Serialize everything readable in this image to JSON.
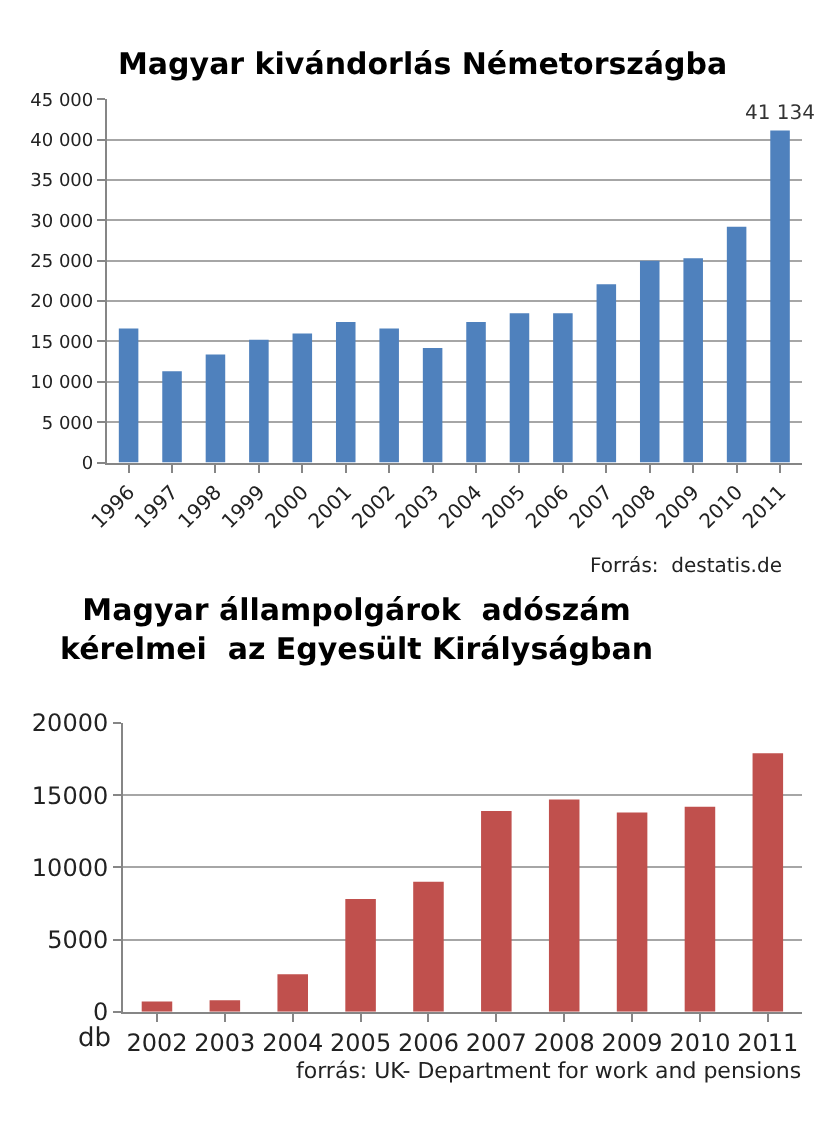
{
  "chart_data": [
    {
      "type": "bar",
      "title": "Magyar kivándorlás Németországba",
      "categories": [
        "1996",
        "1997",
        "1998",
        "1999",
        "2000",
        "2001",
        "2002",
        "2003",
        "2004",
        "2005",
        "2006",
        "2007",
        "2008",
        "2009",
        "2010",
        "2011"
      ],
      "values": [
        16600,
        11300,
        13400,
        15200,
        16000,
        17400,
        16600,
        14200,
        17400,
        18500,
        18500,
        22100,
        25000,
        25300,
        29200,
        41134
      ],
      "value_labels": [
        null,
        null,
        null,
        null,
        null,
        null,
        null,
        null,
        null,
        null,
        null,
        null,
        null,
        null,
        null,
        "41 134"
      ],
      "color": "#4f81bd",
      "ylim": [
        0,
        45000
      ],
      "yticks": [
        0,
        {
          "value": 5000,
          "label": "5 000"
        },
        {
          "value": 10000,
          "label": "10 000"
        },
        {
          "value": 15000,
          "label": "15 000"
        },
        {
          "value": 20000,
          "label": "20 000"
        },
        {
          "value": 25000,
          "label": "25 000"
        },
        {
          "value": 30000,
          "label": "30 000"
        },
        {
          "value": 35000,
          "label": "35 000"
        },
        {
          "value": 40000,
          "label": "40 000"
        },
        {
          "value": 45000,
          "label": "45 000"
        }
      ],
      "grid": "y",
      "annotations": [
        "Forrás:  destatis.de"
      ]
    },
    {
      "type": "bar",
      "title": "Magyar állampolgárok  adószám kérelmei  az Egyesült Királyságban",
      "ylabel": "db",
      "categories": [
        "2002",
        "2003",
        "2004",
        "2005",
        "2006",
        "2007",
        "2008",
        "2009",
        "2010",
        "2011"
      ],
      "values": [
        700,
        800,
        2600,
        7800,
        9000,
        13900,
        14700,
        13800,
        14200,
        17900
      ],
      "color": "#c0504d",
      "ylim": [
        0,
        20000
      ],
      "yticks": [
        0,
        5000,
        10000,
        15000,
        20000
      ],
      "grid": "y",
      "annotations": [
        "forrás: UK- Department for work and pensions"
      ]
    }
  ]
}
